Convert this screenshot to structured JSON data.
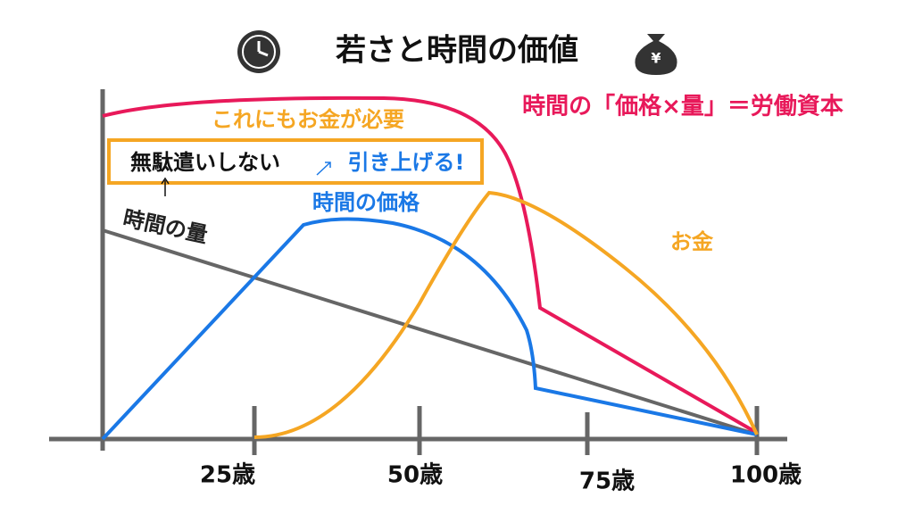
{
  "title": "若さと時間の価値",
  "annotations": {
    "labor_capital": "時間の「価格×量」＝労働資本",
    "money_needed": "これにもお金が必要",
    "no_waste": "無駄遣いしない",
    "raise": "引き上げる!",
    "time_price": "時間の価格",
    "time_amount": "時間の量",
    "money": "お金"
  },
  "x_labels": [
    "25歳",
    "50歳",
    "75歳",
    "100歳"
  ]
}
